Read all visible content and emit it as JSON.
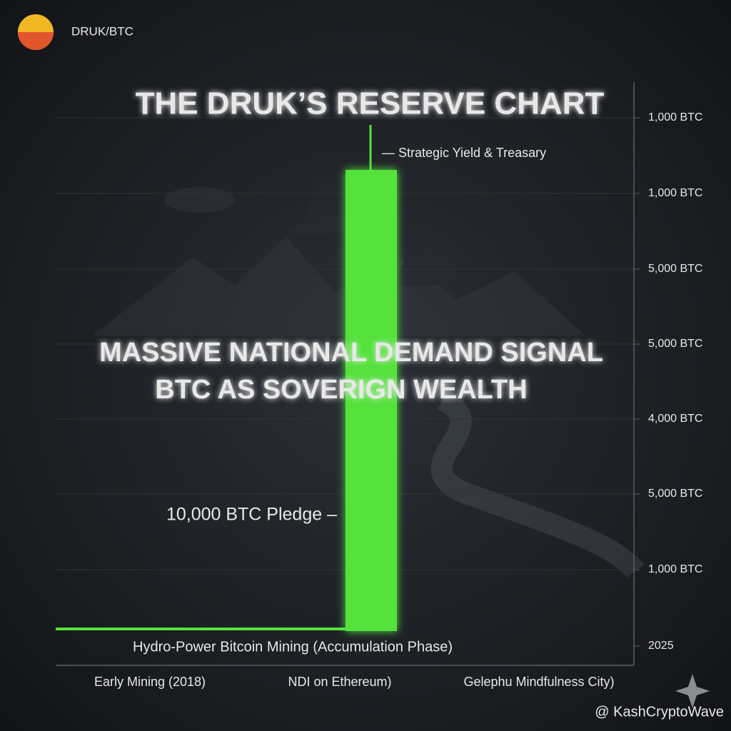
{
  "header": {
    "ticker": "DRUK/BTC"
  },
  "title": "THE DRUK’S RESERVE CHART",
  "headline": {
    "line1": "MASSIVE NATIONAL DEMAND SIGNAL",
    "line2": "BTC AS SOVERIGN WEALTH"
  },
  "y_axis_labels": [
    "1,000 BTC",
    "1,000 BTC",
    "5,000 BTC",
    "5,000 BTC",
    "4,000 BTC",
    "5,000 BTC",
    "1,000 BTC",
    "2025"
  ],
  "x_axis_labels": [
    "Early Mining (2018)",
    "NDI on Ethereum)",
    "Gelephu Mindfulness City)"
  ],
  "annotations": {
    "top": "— Strategic Yield & Treasary",
    "pledge": "10,000 BTC Pledge –",
    "base": "Hydro-Power Bitcoin Mining (Accumulation Phase)"
  },
  "watermark": "@ KashCryptoWave"
}
